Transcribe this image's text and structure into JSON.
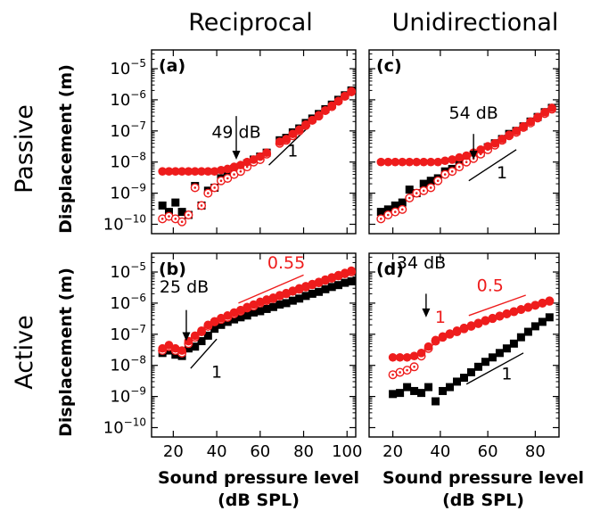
{
  "column_titles": [
    "Reciprocal",
    "Unidirectional"
  ],
  "row_titles": [
    "Passive",
    "Active"
  ],
  "ylabel": "Displacement (m)",
  "xlabel_line1": "Sound pressure level",
  "xlabel_line2": "(dB SPL)",
  "colors": {
    "red": "#ee1c1c",
    "black": "#000000"
  },
  "chart_data": [
    {
      "panel": "(a)",
      "type": "scatter",
      "xscale": "linear",
      "yscale": "log",
      "xlim": [
        10,
        104
      ],
      "ylim": [
        5e-11,
        4e-05
      ],
      "xticks": [
        20,
        40,
        60,
        80,
        100
      ],
      "yticks": [
        -10,
        -9,
        -8,
        -7,
        -6,
        -5
      ],
      "series": [
        {
          "marker": "square",
          "color": "black",
          "x": [
            15,
            18,
            21,
            24,
            27,
            30,
            33,
            36,
            39,
            42,
            45,
            48,
            51,
            54,
            57,
            60,
            63,
            69,
            72,
            75,
            78,
            81,
            84,
            87,
            90,
            93,
            96,
            99,
            102
          ],
          "y": [
            4e-10,
            2.5e-10,
            5e-10,
            2.5e-10,
            2e-10,
            1.7e-09,
            4e-10,
            1.2e-09,
            1.5e-09,
            3e-09,
            3.5e-09,
            6e-09,
            7e-09,
            9e-09,
            1.2e-08,
            1.5e-08,
            2e-08,
            5e-08,
            6e-08,
            9e-08,
            1.2e-07,
            1.8e-07,
            2.5e-07,
            3.5e-07,
            5e-07,
            7e-07,
            1e-06,
            1.4e-06,
            2e-06
          ]
        },
        {
          "marker": "open_circle",
          "color": "red",
          "x": [
            15,
            18,
            21,
            24,
            27,
            30,
            33,
            36,
            39,
            42,
            45,
            48,
            51,
            54,
            57,
            60,
            63,
            69,
            72,
            75,
            78,
            81,
            84,
            87,
            90,
            93,
            96,
            99,
            102
          ],
          "y": [
            1.5e-10,
            1.8e-10,
            1.5e-10,
            1.2e-10,
            2e-10,
            1.5e-09,
            4e-10,
            1e-09,
            1.5e-09,
            2.5e-09,
            3e-09,
            4e-09,
            5e-09,
            7e-09,
            1e-08,
            1.2e-08,
            1.8e-08,
            4e-08,
            5e-08,
            7e-08,
            1e-07,
            1.5e-07,
            2.2e-07,
            3e-07,
            4.5e-07,
            6e-07,
            9e-07,
            1.3e-06,
            1.8e-06
          ]
        },
        {
          "marker": "dot",
          "color": "red",
          "x": [
            15,
            18,
            21,
            24,
            27,
            30,
            33,
            36,
            39,
            42,
            45,
            48,
            51,
            54,
            57,
            60,
            63,
            69,
            72,
            75,
            78,
            81,
            84,
            87,
            90,
            93,
            96,
            99,
            102
          ],
          "y": [
            5e-09,
            5e-09,
            5e-09,
            5e-09,
            5e-09,
            5e-09,
            5e-09,
            5e-09,
            5e-09,
            5.5e-09,
            6e-09,
            7e-09,
            8e-09,
            1e-08,
            1.2e-08,
            1.5e-08,
            2e-08,
            4.5e-08,
            5.5e-08,
            8e-08,
            1.1e-07,
            1.6e-07,
            2.2e-07,
            3.2e-07,
            4.5e-07,
            6.5e-07,
            9e-07,
            1.3e-06,
            1.9e-06
          ]
        }
      ],
      "annotations": [
        {
          "text": "49 dB",
          "color": "black",
          "x": 49,
          "y": 6e-08
        },
        {
          "text": "1",
          "color": "black",
          "x": 75,
          "y": 1.5e-08
        }
      ],
      "slope_lines": [
        {
          "color": "black",
          "x": [
            64,
            83
          ],
          "y": [
            8e-09,
            1.5e-07
          ]
        }
      ],
      "arrows": [
        {
          "color": "black",
          "x": 49,
          "y_from": 3e-07,
          "y_to": 1.2e-08
        }
      ]
    },
    {
      "panel": "(c)",
      "type": "scatter",
      "xscale": "linear",
      "yscale": "log",
      "xlim": [
        10,
        90
      ],
      "ylim": [
        5e-11,
        4e-05
      ],
      "xticks": [
        20,
        40,
        60,
        80
      ],
      "yticks": [
        -10,
        -9,
        -8,
        -7,
        -6,
        -5
      ],
      "series": [
        {
          "marker": "square",
          "color": "black",
          "x": [
            15,
            18,
            21,
            24,
            27,
            30,
            33,
            36,
            39,
            42,
            45,
            48,
            51,
            54,
            57,
            60,
            63,
            66,
            69,
            72,
            75,
            78,
            81,
            84,
            87
          ],
          "y": [
            2.5e-10,
            3e-10,
            4e-10,
            5e-10,
            1.3e-09,
            1e-09,
            2e-09,
            2.5e-09,
            3e-09,
            5e-09,
            6e-09,
            9e-09,
            1.2e-08,
            1.6e-08,
            2e-08,
            3e-08,
            4e-08,
            5.5e-08,
            8e-08,
            1e-07,
            1.4e-07,
            2e-07,
            2.8e-07,
            4e-07,
            5.5e-07
          ]
        },
        {
          "marker": "open_circle",
          "color": "red",
          "x": [
            15,
            18,
            21,
            24,
            27,
            30,
            33,
            36,
            39,
            42,
            45,
            48,
            51,
            54,
            57,
            60,
            63,
            66,
            69,
            72,
            75,
            78,
            81,
            84,
            87
          ],
          "y": [
            1.5e-10,
            2e-10,
            2.5e-10,
            3e-10,
            7e-10,
            1e-09,
            1.2e-09,
            1.5e-09,
            2.5e-09,
            4e-09,
            5e-09,
            7e-09,
            1e-08,
            1.3e-08,
            1.8e-08,
            2.5e-08,
            3.5e-08,
            5e-08,
            7e-08,
            9e-08,
            1.3e-07,
            1.8e-07,
            2.6e-07,
            3.6e-07,
            5e-07
          ]
        },
        {
          "marker": "dot",
          "color": "red",
          "x": [
            15,
            18,
            21,
            24,
            27,
            30,
            33,
            36,
            39,
            42,
            45,
            48,
            51,
            54,
            57,
            60,
            63,
            66,
            69,
            72,
            75,
            78,
            81,
            84,
            87
          ],
          "y": [
            1e-08,
            1e-08,
            1e-08,
            1e-08,
            1e-08,
            1e-08,
            1e-08,
            1e-08,
            1e-08,
            1.1e-08,
            1.2e-08,
            1.4e-08,
            1.6e-08,
            2e-08,
            2.5e-08,
            3.2e-08,
            4e-08,
            5.5e-08,
            7.5e-08,
            1e-07,
            1.4e-07,
            2e-07,
            2.8e-07,
            4e-07,
            5.5e-07
          ]
        }
      ],
      "annotations": [
        {
          "text": "54 dB",
          "color": "black",
          "x": 54,
          "y": 2.5e-07
        },
        {
          "text": "1",
          "color": "black",
          "x": 66,
          "y": 3e-09
        }
      ],
      "slope_lines": [
        {
          "color": "black",
          "x": [
            52,
            72
          ],
          "y": [
            2.5e-09,
            2.5e-08
          ]
        }
      ],
      "arrows": [
        {
          "color": "black",
          "x": 54,
          "y_from": 8e-08,
          "y_to": 1.2e-08
        }
      ]
    },
    {
      "panel": "(b)",
      "type": "scatter",
      "xscale": "linear",
      "yscale": "log",
      "xlim": [
        10,
        104
      ],
      "ylim": [
        5e-11,
        4e-05
      ],
      "xticks": [
        20,
        40,
        60,
        80,
        100
      ],
      "yticks": [
        -10,
        -9,
        -8,
        -7,
        -6,
        -5
      ],
      "series": [
        {
          "marker": "square",
          "color": "black",
          "x": [
            15,
            18,
            21,
            24,
            27,
            30,
            33,
            36,
            39,
            42,
            45,
            48,
            51,
            54,
            57,
            60,
            63,
            66,
            69,
            72,
            75,
            78,
            81,
            84,
            87,
            90,
            93,
            96,
            99,
            102
          ],
          "y": [
            2.5e-08,
            3e-08,
            2.2e-08,
            2e-08,
            3.5e-08,
            4e-08,
            6e-08,
            9e-08,
            1.5e-07,
            2e-07,
            2.5e-07,
            3e-07,
            3.5e-07,
            4e-07,
            5e-07,
            5.5e-07,
            6.5e-07,
            7.5e-07,
            9e-07,
            1e-06,
            1.2e-06,
            1.4e-06,
            1.7e-06,
            2e-06,
            2.3e-06,
            2.8e-06,
            3.3e-06,
            3.8e-06,
            4.5e-06,
            5e-06
          ]
        },
        {
          "marker": "open_circle",
          "color": "red",
          "x": [
            15,
            18,
            21,
            24,
            27,
            30,
            33,
            36,
            39,
            42,
            45,
            48,
            51,
            54,
            57,
            60,
            63,
            66,
            69,
            72,
            75,
            78,
            81,
            84,
            87,
            90,
            93,
            96,
            99,
            102
          ],
          "y": [
            3e-08,
            4e-08,
            3e-08,
            2.5e-08,
            5e-08,
            8e-08,
            1.2e-07,
            1.8e-07,
            2.5e-07,
            3e-07,
            3.5e-07,
            4.5e-07,
            5.5e-07,
            7e-07,
            8e-07,
            1e-06,
            1.2e-06,
            1.4e-06,
            1.7e-06,
            2e-06,
            2.4e-06,
            2.8e-06,
            3.3e-06,
            3.9e-06,
            4.5e-06,
            5.4e-06,
            6.3e-06,
            7.5e-06,
            8.8e-06,
            1e-05
          ]
        },
        {
          "marker": "dot",
          "color": "red",
          "x": [
            15,
            18,
            21,
            24,
            27,
            30,
            33,
            36,
            39,
            42,
            45,
            48,
            51,
            54,
            57,
            60,
            63,
            66,
            69,
            72,
            75,
            78,
            81,
            84,
            87,
            90,
            93,
            96,
            99,
            102
          ],
          "y": [
            3.5e-08,
            4.5e-08,
            3.5e-08,
            3e-08,
            6e-08,
            9e-08,
            1.3e-07,
            2e-07,
            2.6e-07,
            3.3e-07,
            4e-07,
            5e-07,
            6e-07,
            7.5e-07,
            9e-07,
            1.1e-06,
            1.3e-06,
            1.5e-06,
            1.8e-06,
            2.1e-06,
            2.5e-06,
            3e-06,
            3.5e-06,
            4.1e-06,
            4.8e-06,
            5.7e-06,
            6.7e-06,
            7.9e-06,
            9.3e-06,
            1.1e-05
          ]
        }
      ],
      "annotations": [
        {
          "text": "25 dB",
          "color": "black",
          "x": 25,
          "y": 2.2e-06
        },
        {
          "text": "0.55",
          "color": "red",
          "x": 72,
          "y": 1.3e-05
        },
        {
          "text": "1",
          "color": "black",
          "x": 40,
          "y": 4e-09
        }
      ],
      "slope_lines": [
        {
          "color": "red",
          "x": [
            50,
            80
          ],
          "y": [
            1e-06,
            8e-06
          ]
        },
        {
          "color": "black",
          "x": [
            28,
            40
          ],
          "y": [
            8e-09,
            7e-08
          ]
        }
      ],
      "arrows": [
        {
          "color": "black",
          "x": 26,
          "y_from": 6e-07,
          "y_to": 6e-08
        }
      ]
    },
    {
      "panel": "(d)",
      "type": "scatter",
      "xscale": "linear",
      "yscale": "log",
      "xlim": [
        10,
        90
      ],
      "ylim": [
        5e-11,
        4e-05
      ],
      "xticks": [
        20,
        40,
        60,
        80
      ],
      "yticks": [
        -10,
        -9,
        -8,
        -7,
        -6,
        -5
      ],
      "series": [
        {
          "marker": "square",
          "color": "black",
          "x": [
            20,
            23,
            26,
            29,
            32,
            35,
            38,
            41,
            44,
            47,
            50,
            53,
            56,
            59,
            62,
            65,
            68,
            71,
            74,
            77,
            80,
            83,
            86
          ],
          "y": [
            1.2e-09,
            1.3e-09,
            2e-09,
            1.5e-09,
            1.3e-09,
            2e-09,
            7e-10,
            1.5e-09,
            2e-09,
            3e-09,
            4e-09,
            6e-09,
            9e-09,
            1.3e-08,
            1.8e-08,
            2.5e-08,
            3.5e-08,
            5e-08,
            8e-08,
            1.2e-07,
            1.8e-07,
            2.5e-07,
            3.5e-07
          ]
        },
        {
          "marker": "open_circle",
          "color": "red",
          "x": [
            20,
            23,
            26,
            29,
            32,
            35,
            38,
            41,
            44,
            47,
            50,
            53,
            56,
            59,
            62,
            65,
            68,
            71,
            74,
            77,
            80,
            83,
            86
          ],
          "y": [
            5e-09,
            6e-09,
            7e-09,
            9e-09,
            2e-08,
            3.5e-08,
            6e-08,
            8e-08,
            1e-07,
            1.2e-07,
            1.5e-07,
            1.8e-07,
            2.2e-07,
            2.7e-07,
            3.2e-07,
            3.8e-07,
            4.5e-07,
            5.3e-07,
            6.2e-07,
            7.3e-07,
            8.5e-07,
            1e-06,
            1.15e-06
          ]
        },
        {
          "marker": "dot",
          "color": "red",
          "x": [
            20,
            23,
            26,
            29,
            32,
            35,
            38,
            41,
            44,
            47,
            50,
            53,
            56,
            59,
            62,
            65,
            68,
            71,
            74,
            77,
            80,
            83,
            86
          ],
          "y": [
            1.8e-08,
            1.8e-08,
            1.8e-08,
            2e-08,
            2.5e-08,
            4e-08,
            6.5e-08,
            8.5e-08,
            1.05e-07,
            1.3e-07,
            1.6e-07,
            1.9e-07,
            2.3e-07,
            2.8e-07,
            3.3e-07,
            3.9e-07,
            4.6e-07,
            5.4e-07,
            6.3e-07,
            7.4e-07,
            8.6e-07,
            1e-06,
            1.2e-06
          ]
        }
      ],
      "annotations": [
        {
          "text": "34 dB",
          "color": "black",
          "x": 32,
          "y": 1.3e-05
        },
        {
          "text": "1",
          "color": "red",
          "x": 40,
          "y": 2.3e-07
        },
        {
          "text": "0.5",
          "color": "red",
          "x": 61,
          "y": 2.4e-06
        },
        {
          "text": "1",
          "color": "black",
          "x": 68,
          "y": 3.5e-09
        }
      ],
      "slope_lines": [
        {
          "color": "red",
          "x": [
            36,
            43
          ],
          "y": [
            4e-08,
            1.2e-07
          ]
        },
        {
          "color": "red",
          "x": [
            52,
            76
          ],
          "y": [
            4e-07,
            1.8e-06
          ]
        },
        {
          "color": "black",
          "x": [
            51,
            75
          ],
          "y": [
            2.5e-09,
            2.5e-08
          ]
        }
      ],
      "arrows": [
        {
          "color": "black",
          "x": 34,
          "y_from": 2e-06,
          "y_to": 3.5e-07
        }
      ]
    }
  ]
}
